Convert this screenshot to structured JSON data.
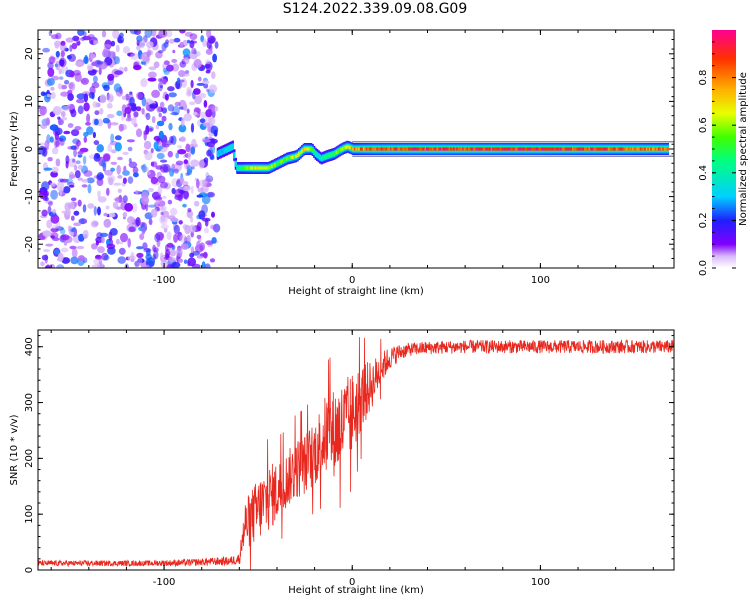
{
  "figure_title": "S124.2022.339.09.08.G09",
  "colors": {
    "snr_line": "#e8281e",
    "spec_dense": "#6a00e0",
    "spec_light": "#c7a6f5"
  },
  "chart_data": [
    {
      "type": "heatmap",
      "title": "",
      "xlabel": "Height of straight line (km)",
      "ylabel": "Frequency (Hz)",
      "xlim": [
        -167,
        171
      ],
      "ylim": [
        -25,
        25
      ],
      "xticks": [
        -100,
        0,
        100
      ],
      "xtick_labels": [
        "-100",
        "0",
        "100"
      ],
      "yticks": [
        -20,
        -10,
        0,
        10,
        20
      ],
      "ytick_labels": [
        "-20",
        "-10",
        "0",
        "10",
        "20"
      ],
      "noise_region_x": [
        -165,
        -72
      ],
      "ridge": {
        "x": [
          -72,
          -64,
          -62,
          -58,
          -52,
          -45,
          -40,
          -35,
          -30,
          -26,
          -22,
          -20,
          -17,
          -14,
          -10,
          -6,
          -3,
          0,
          10,
          30,
          60,
          100,
          140,
          168
        ],
        "freq": [
          -1,
          0.5,
          -4,
          -4,
          -4,
          -4,
          -3,
          -2,
          -1.5,
          0,
          0,
          -1,
          -2,
          -1.5,
          -1,
          0,
          0.5,
          0,
          0,
          0,
          0,
          0,
          0,
          0
        ],
        "amp": [
          0.3,
          0.35,
          0.4,
          0.55,
          0.7,
          0.65,
          0.55,
          0.6,
          0.65,
          0.75,
          0.6,
          0.4,
          0.4,
          0.5,
          0.55,
          0.65,
          0.7,
          0.8,
          0.9,
          0.95,
          0.95,
          0.95,
          0.92,
          0.85
        ]
      },
      "colorbar": {
        "label": "Normalized spectral amplitude",
        "ticks": [
          0.0,
          0.2,
          0.4,
          0.6,
          0.8
        ],
        "tick_labels": [
          "0.0",
          "0.2",
          "0.4",
          "0.6",
          "0.8"
        ],
        "range": [
          0,
          1
        ]
      }
    },
    {
      "type": "line",
      "title": "",
      "xlabel": "Height of straight line (km)",
      "ylabel": "SNR (10 * v/v)",
      "xlim": [
        -167,
        171
      ],
      "ylim": [
        0,
        430
      ],
      "xticks": [
        -100,
        0,
        100
      ],
      "xtick_labels": [
        "-100",
        "0",
        "100"
      ],
      "yticks": [
        0,
        100,
        200,
        300,
        400
      ],
      "ytick_labels": [
        "0",
        "100",
        "200",
        "300",
        "400"
      ],
      "series": [
        {
          "name": "SNR",
          "x": [
            -167,
            -150,
            -130,
            -110,
            -90,
            -75,
            -65,
            -60,
            -57,
            -52,
            -48,
            -44,
            -40,
            -35,
            -30,
            -25,
            -20,
            -15,
            -10,
            -5,
            0,
            5,
            10,
            15,
            20,
            25,
            30,
            40,
            60,
            80,
            100,
            120,
            140,
            171
          ],
          "y": [
            12,
            12,
            12,
            12,
            13,
            15,
            16,
            20,
            80,
            100,
            115,
            130,
            140,
            160,
            180,
            190,
            210,
            240,
            245,
            260,
            280,
            310,
            330,
            360,
            380,
            390,
            395,
            398,
            400,
            400,
            400,
            400,
            400,
            400
          ],
          "noise_amplitude": [
            5,
            5,
            5,
            5,
            6,
            7,
            8,
            10,
            45,
            55,
            60,
            60,
            55,
            50,
            55,
            55,
            60,
            70,
            80,
            80,
            75,
            60,
            45,
            30,
            20,
            15,
            12,
            12,
            12,
            12,
            12,
            12,
            12,
            12
          ]
        }
      ]
    }
  ]
}
